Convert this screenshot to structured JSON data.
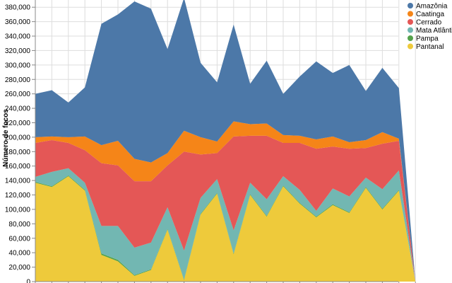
{
  "chart_data": {
    "type": "area",
    "stacked": true,
    "title": "",
    "xlabel": "",
    "ylabel": "Número de focos",
    "ylim": [
      0,
      390000
    ],
    "yticks": [
      0,
      20000,
      40000,
      60000,
      80000,
      100000,
      120000,
      140000,
      160000,
      180000,
      200000,
      220000,
      240000,
      260000,
      280000,
      300000,
      320000,
      340000,
      360000,
      380000
    ],
    "ytick_labels": [
      "0",
      "20,000",
      "40,000",
      "60,000",
      "80,000",
      "100,000",
      "120,000",
      "140,000",
      "160,000",
      "180,000",
      "200,000",
      "220,000",
      "240,000",
      "260,000",
      "280,000",
      "300,000",
      "320,000",
      "340,000",
      "360,000",
      "380,000"
    ],
    "grid": true,
    "legend_position": "top-right",
    "x": [
      0,
      1,
      2,
      3,
      4,
      5,
      6,
      7,
      8,
      9,
      10,
      11,
      12,
      13,
      14,
      15,
      16,
      17,
      18,
      19,
      20,
      21,
      22,
      23
    ],
    "series": [
      {
        "name": "Pantanal",
        "color": "#eeca3b",
        "values": [
          137000,
          131000,
          146000,
          126000,
          37000,
          28000,
          8000,
          16000,
          72000,
          2000,
          93000,
          122000,
          38000,
          120000,
          90000,
          132000,
          108000,
          89000,
          106000,
          95000,
          130000,
          100000,
          126000,
          0
        ]
      },
      {
        "name": "Pampa",
        "color": "#54a24b",
        "values": [
          1000,
          1000,
          1000,
          1000,
          2000,
          2000,
          1000,
          1000,
          1000,
          1000,
          1000,
          1000,
          1000,
          1000,
          1000,
          1000,
          1000,
          1000,
          1000,
          1000,
          1000,
          1000,
          1000,
          0
        ]
      },
      {
        "name": "Mata Atlântica",
        "color": "#72b7b2",
        "values": [
          7000,
          20000,
          10000,
          10000,
          38000,
          47000,
          38000,
          37000,
          30000,
          40000,
          22000,
          19000,
          32000,
          16000,
          23000,
          13000,
          18000,
          8000,
          22000,
          22000,
          13000,
          27000,
          27000,
          0
        ]
      },
      {
        "name": "Cerrado",
        "color": "#e45756",
        "values": [
          47000,
          44000,
          35000,
          45000,
          87000,
          84000,
          92000,
          85000,
          58000,
          137000,
          60000,
          36000,
          130000,
          65000,
          88000,
          46000,
          65000,
          86000,
          58000,
          66000,
          41000,
          63000,
          41000,
          0
        ]
      },
      {
        "name": "Caatinga",
        "color": "#f58518",
        "values": [
          8000,
          5000,
          8000,
          19000,
          25000,
          34000,
          31000,
          26000,
          17000,
          29000,
          24000,
          16000,
          21000,
          16000,
          17000,
          11000,
          10000,
          13000,
          14000,
          9000,
          11000,
          16000,
          3000,
          0
        ]
      },
      {
        "name": "Amazônia",
        "color": "#4c78a8",
        "values": [
          60000,
          64000,
          48000,
          68000,
          168000,
          175000,
          218000,
          213000,
          144000,
          184000,
          103000,
          82000,
          134000,
          56000,
          87000,
          57000,
          82000,
          108000,
          88000,
          107000,
          68000,
          89000,
          70000,
          0
        ]
      }
    ],
    "legend_order": [
      "Amazônia",
      "Caatinga",
      "Cerrado",
      "Mata Atlântica",
      "Pampa",
      "Pantanal"
    ]
  }
}
